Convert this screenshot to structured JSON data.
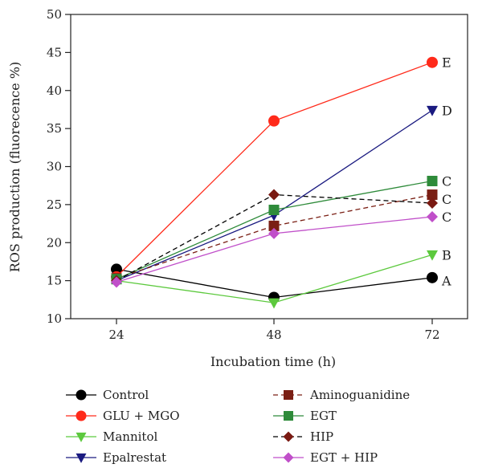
{
  "chart_data": {
    "type": "line",
    "xlabel": "Incubation time (h)",
    "ylabel": "ROS production (fluorecence %)",
    "x": [
      24,
      48,
      72
    ],
    "ylim": [
      10,
      50
    ],
    "yticks": [
      10,
      15,
      20,
      25,
      30,
      35,
      40,
      45,
      50
    ],
    "grid": false,
    "legend_position": "bottom",
    "series": [
      {
        "name": "Control",
        "values": [
          16.5,
          12.8,
          15.4
        ],
        "color": "#000000",
        "marker": "circle",
        "dash": false,
        "end_label": "A"
      },
      {
        "name": "GLU + MGO",
        "values": [
          15.5,
          36.0,
          43.7
        ],
        "color": "#ff2a1a",
        "marker": "circle",
        "dash": false,
        "end_label": "E"
      },
      {
        "name": "Mannitol",
        "values": [
          15.0,
          12.1,
          18.4
        ],
        "color": "#5cc93d",
        "marker": "triangle-down",
        "dash": false,
        "end_label": "B"
      },
      {
        "name": "Epalrestat",
        "values": [
          15.0,
          23.6,
          37.4
        ],
        "color": "#1a1a80",
        "marker": "triangle-down",
        "dash": false,
        "end_label": "D"
      },
      {
        "name": "Aminoguanidine",
        "values": [
          15.3,
          22.2,
          26.3
        ],
        "color": "#7a1f14",
        "marker": "square",
        "dash": true,
        "end_label": "C"
      },
      {
        "name": "EGT",
        "values": [
          15.2,
          24.3,
          28.1
        ],
        "color": "#2e8b3a",
        "marker": "square",
        "dash": false,
        "end_label": "C"
      },
      {
        "name": "HIP",
        "values": [
          15.0,
          26.3,
          25.2
        ],
        "color": "#000000",
        "marker": "diamond",
        "dash": true,
        "marker_color": "#7a1a12",
        "end_label": "C"
      },
      {
        "name": "EGT + HIP",
        "values": [
          14.8,
          21.2,
          23.4
        ],
        "color": "#c04fc9",
        "marker": "diamond",
        "dash": false,
        "end_label": "C"
      }
    ],
    "group_labels": [
      {
        "text": "E",
        "y": 43.7
      },
      {
        "text": "D",
        "y": 37.4
      },
      {
        "text": "C",
        "y": 28.1
      },
      {
        "text": "C",
        "y": 25.7
      },
      {
        "text": "C",
        "y": 23.4
      },
      {
        "text": "B",
        "y": 18.4
      },
      {
        "text": "A",
        "y": 15.0
      }
    ]
  }
}
